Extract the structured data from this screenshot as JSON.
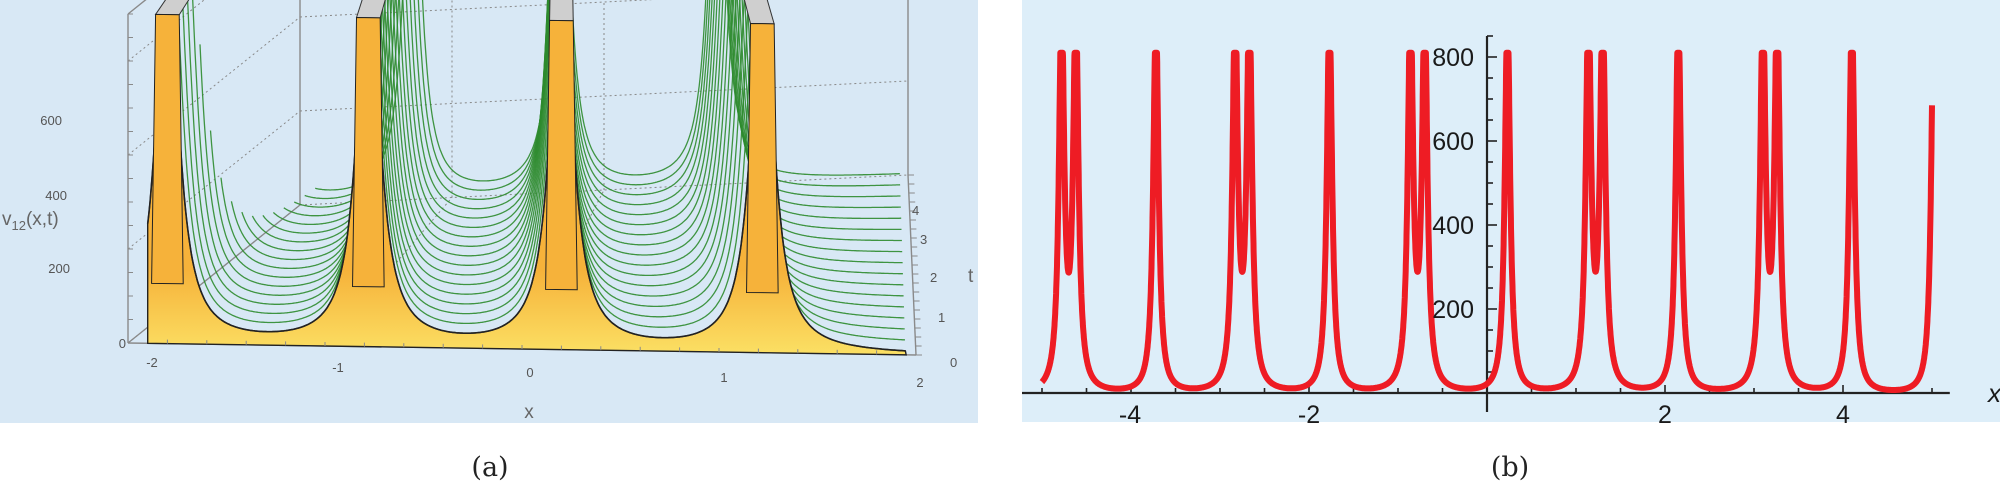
{
  "captions": {
    "a": "(a)",
    "b": "(b)"
  },
  "colors": {
    "panel_a_bg": "#d8e8f5",
    "panel_b_bg": "#ddeef9",
    "surface_orange": "#f6b23a",
    "surface_yellow": "#fbe064",
    "mesh_green": "#2e8b2e",
    "ridge_top_gray": "#cfcfcf",
    "curve_red": "#ee1c24",
    "axis_dark": "#222222",
    "box_gray": "#8a8a8a"
  },
  "chart_data": [
    {
      "id": "a",
      "type": "surface3d",
      "title": "",
      "zlabel": "v12(x,t)",
      "zlabel_main": "v",
      "zlabel_sub": "12",
      "zlabel_tail": "(x,t)",
      "xlabel": "x",
      "ylabel": "t",
      "x_ticks": [
        "-2",
        "-1",
        "0",
        "1",
        "2"
      ],
      "t_ticks": [
        "0",
        "1",
        "2",
        "3",
        "4"
      ],
      "z_ticks": [
        "0",
        "200",
        "400",
        "600"
      ],
      "xlim": [
        -2,
        2
      ],
      "tlim": [
        0,
        4
      ],
      "zlim": [
        0,
        700
      ],
      "ridges_x_at_t0": [
        -1.8,
        -0.78,
        0.2,
        1.22
      ],
      "ridge_clip_value": 700,
      "minimum_value": 0,
      "mesh": true
    },
    {
      "id": "b",
      "type": "line",
      "title": "",
      "xlabel": "x",
      "ylabel": "",
      "x_ticks": [
        "-4",
        "-2",
        "2",
        "4"
      ],
      "y_ticks": [
        "200",
        "400",
        "600",
        "800"
      ],
      "xlim": [
        -5.2,
        5.2
      ],
      "ylim": [
        0,
        800
      ],
      "clip_value": 810,
      "x_range_plotted": [
        -5.0,
        5.0
      ],
      "start_value": 57,
      "pair_spike_centers": [
        -4.7,
        -2.75,
        -0.78,
        1.22,
        3.18
      ],
      "pair_half_gap": 0.08,
      "single_spike_centers": [
        -3.72,
        -1.77,
        0.23,
        2.15,
        4.1,
        5.02
      ],
      "deep_minima": [
        {
          "x": -4.1,
          "y": 8
        },
        {
          "x": -2.15,
          "y": 8
        },
        {
          "x": -0.15,
          "y": 8
        },
        {
          "x": 1.8,
          "y": 8
        },
        {
          "x": 3.8,
          "y": 8
        }
      ],
      "shallow_minima": [
        {
          "x": -3.3,
          "y": 28
        },
        {
          "x": -1.3,
          "y": 28
        },
        {
          "x": 0.72,
          "y": 28
        },
        {
          "x": 2.68,
          "y": 28
        },
        {
          "x": 4.6,
          "y": 28
        }
      ],
      "line_color": "#ee1c24",
      "line_width": 6
    }
  ]
}
